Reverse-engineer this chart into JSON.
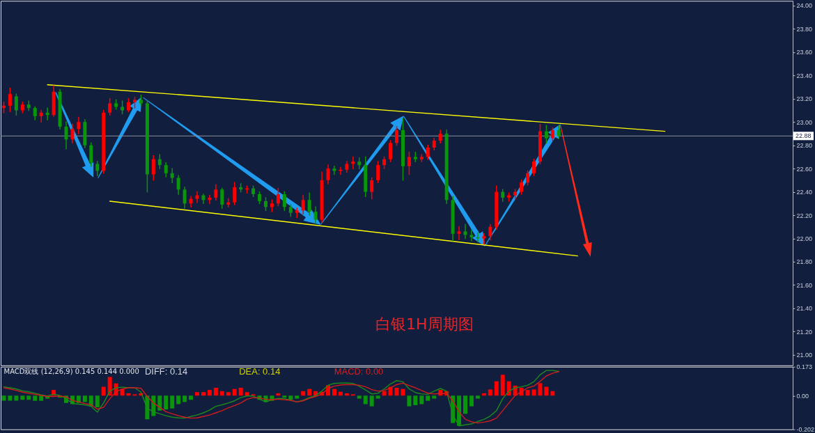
{
  "chart_data": [
    {
      "type": "candlestick",
      "annotations": [
        "白银1H周期图"
      ],
      "categories": [
        null,
        null,
        null,
        null,
        null,
        null,
        null,
        null,
        null,
        null,
        null,
        null,
        null,
        null,
        null,
        null,
        null,
        null,
        null,
        null,
        null,
        null,
        null,
        null,
        null,
        null,
        null,
        null,
        null,
        null,
        null,
        null,
        null,
        null,
        null,
        null,
        null,
        null,
        null,
        null,
        null,
        null,
        null,
        null,
        null,
        null,
        null,
        null,
        null,
        null,
        null,
        null,
        null,
        null,
        null,
        null,
        null,
        null,
        null,
        null,
        null,
        null,
        null,
        null,
        null,
        null,
        null,
        null,
        null,
        null,
        null,
        null,
        null,
        null,
        null,
        null,
        null,
        null,
        null,
        null,
        null,
        null,
        null,
        null,
        null,
        null,
        null,
        null,
        null,
        null,
        null,
        null,
        null,
        null,
        null,
        null,
        null,
        null,
        null,
        null,
        null,
        null,
        null,
        null,
        null,
        null,
        null,
        null,
        null,
        null,
        null,
        null,
        null,
        null,
        null,
        null,
        null,
        null,
        null,
        null,
        null,
        null,
        null,
        null,
        null,
        null,
        null
      ],
      "ohlc": [
        [
          23.12,
          23.17,
          23.08,
          23.14
        ],
        [
          23.14,
          23.29,
          23.09,
          23.24
        ],
        [
          23.22,
          23.24,
          23.06,
          23.1
        ],
        [
          23.1,
          23.17,
          23.08,
          23.15
        ],
        [
          23.15,
          23.18,
          23.1,
          23.12
        ],
        [
          23.12,
          23.13,
          23.02,
          23.05
        ],
        [
          23.05,
          23.1,
          23.0,
          23.08
        ],
        [
          23.08,
          23.12,
          23.02,
          23.06
        ],
        [
          23.06,
          23.31,
          23.05,
          23.26
        ],
        [
          23.26,
          23.28,
          22.94,
          22.96
        ],
        [
          22.96,
          23.0,
          22.77,
          22.85
        ],
        [
          22.85,
          22.98,
          22.82,
          22.94
        ],
        [
          22.94,
          23.04,
          22.9,
          23.0
        ],
        [
          23.0,
          23.02,
          22.78,
          22.8
        ],
        [
          22.8,
          22.82,
          22.62,
          22.65
        ],
        [
          22.64,
          22.66,
          22.54,
          22.58
        ],
        [
          22.58,
          23.1,
          22.56,
          23.08
        ],
        [
          23.08,
          23.2,
          23.06,
          23.16
        ],
        [
          23.16,
          23.19,
          23.11,
          23.13
        ],
        [
          23.13,
          23.18,
          23.07,
          23.1
        ],
        [
          23.1,
          23.2,
          23.09,
          23.17
        ],
        [
          23.17,
          23.21,
          23.12,
          23.19
        ],
        [
          23.19,
          23.23,
          23.14,
          23.16
        ],
        [
          23.16,
          23.18,
          22.4,
          22.55
        ],
        [
          22.55,
          22.71,
          22.5,
          22.68
        ],
        [
          22.68,
          22.72,
          22.6,
          22.63
        ],
        [
          22.63,
          22.65,
          22.53,
          22.56
        ],
        [
          22.56,
          22.6,
          22.48,
          22.52
        ],
        [
          22.52,
          22.54,
          22.38,
          22.42
        ],
        [
          22.42,
          22.44,
          22.26,
          22.3
        ],
        [
          22.3,
          22.36,
          22.27,
          22.34
        ],
        [
          22.34,
          22.4,
          22.31,
          22.37
        ],
        [
          22.37,
          22.38,
          22.3,
          22.33
        ],
        [
          22.33,
          22.37,
          22.3,
          22.35
        ],
        [
          22.35,
          22.46,
          22.33,
          22.42
        ],
        [
          22.42,
          22.43,
          22.26,
          22.29
        ],
        [
          22.29,
          22.34,
          22.27,
          22.31
        ],
        [
          22.31,
          22.48,
          22.29,
          22.44
        ],
        [
          22.44,
          22.47,
          22.4,
          22.42
        ],
        [
          22.42,
          22.45,
          22.39,
          22.43
        ],
        [
          22.43,
          22.45,
          22.36,
          22.38
        ],
        [
          22.38,
          22.4,
          22.3,
          22.32
        ],
        [
          22.32,
          22.35,
          22.24,
          22.27
        ],
        [
          22.27,
          22.33,
          22.23,
          22.3
        ],
        [
          22.3,
          22.43,
          22.28,
          22.38
        ],
        [
          22.38,
          22.4,
          22.24,
          22.27
        ],
        [
          22.27,
          22.29,
          22.19,
          22.22
        ],
        [
          22.22,
          22.26,
          22.18,
          22.24
        ],
        [
          22.24,
          22.37,
          22.21,
          22.33
        ],
        [
          22.33,
          22.39,
          22.2,
          22.23
        ],
        [
          22.23,
          22.27,
          22.13,
          22.16
        ],
        [
          22.16,
          22.57,
          22.14,
          22.5
        ],
        [
          22.5,
          22.63,
          22.47,
          22.6
        ],
        [
          22.6,
          22.62,
          22.55,
          22.58
        ],
        [
          22.58,
          22.61,
          22.55,
          22.59
        ],
        [
          22.59,
          22.66,
          22.57,
          22.64
        ],
        [
          22.64,
          22.7,
          22.6,
          22.66
        ],
        [
          22.66,
          22.69,
          22.6,
          22.63
        ],
        [
          22.63,
          22.7,
          22.36,
          22.4
        ],
        [
          22.4,
          22.52,
          22.34,
          22.5
        ],
        [
          22.5,
          22.66,
          22.48,
          22.63
        ],
        [
          22.63,
          22.7,
          22.6,
          22.68
        ],
        [
          22.68,
          22.84,
          22.66,
          22.82
        ],
        [
          22.82,
          22.96,
          22.8,
          22.93
        ],
        [
          22.93,
          23.03,
          22.5,
          22.62
        ],
        [
          22.62,
          22.74,
          22.55,
          22.7
        ],
        [
          22.7,
          22.74,
          22.66,
          22.68
        ],
        [
          22.68,
          22.72,
          22.66,
          22.7
        ],
        [
          22.7,
          22.8,
          22.68,
          22.78
        ],
        [
          22.78,
          22.86,
          22.76,
          22.84
        ],
        [
          22.84,
          22.93,
          22.82,
          22.9
        ],
        [
          22.9,
          22.93,
          22.3,
          22.33
        ],
        [
          22.33,
          22.36,
          21.98,
          22.04
        ],
        [
          22.04,
          22.1,
          21.99,
          22.06
        ],
        [
          22.06,
          22.12,
          22.0,
          22.03
        ],
        [
          22.03,
          22.07,
          21.98,
          22.01
        ],
        [
          22.01,
          22.05,
          21.97,
          22.0
        ],
        [
          22.0,
          22.04,
          21.95,
          22.02
        ],
        [
          22.02,
          22.12,
          21.99,
          22.1
        ],
        [
          22.1,
          22.45,
          22.08,
          22.4
        ],
        [
          22.4,
          22.42,
          22.32,
          22.35
        ],
        [
          22.35,
          22.39,
          22.32,
          22.37
        ],
        [
          22.37,
          22.42,
          22.34,
          22.4
        ],
        [
          22.4,
          22.5,
          22.38,
          22.48
        ],
        [
          22.48,
          22.58,
          22.46,
          22.56
        ],
        [
          22.56,
          22.68,
          22.54,
          22.66
        ],
        [
          22.66,
          22.98,
          22.64,
          22.92
        ],
        [
          22.92,
          22.97,
          22.82,
          22.86
        ],
        [
          22.86,
          22.95,
          22.84,
          22.93
        ],
        [
          22.93,
          22.97,
          22.86,
          22.88
        ],
        null,
        null,
        null,
        null,
        null,
        null,
        null,
        null,
        null,
        null,
        null,
        null,
        null,
        null,
        null,
        null,
        null,
        null,
        null,
        null,
        null,
        null,
        null,
        null,
        null,
        null,
        null,
        null,
        null,
        null,
        null,
        null,
        null,
        null,
        null,
        null,
        null
      ],
      "colors": [
        "#ff0000",
        "#ff0000",
        "#0a960a",
        "#ff0000",
        "#0a960a",
        "#0a960a",
        "#ff0000",
        "#0a960a",
        "#ff0000",
        "#0a960a",
        "#0a960a",
        "#ff0000",
        "#ff0000",
        "#0a960a",
        "#0a960a",
        "#0a960a",
        "#ff0000",
        "#ff0000",
        "#0a960a",
        "#0a960a",
        "#ff0000",
        "#ff0000",
        "#0a960a",
        "#0a960a",
        "#ff0000",
        "#0a960a",
        "#0a960a",
        "#0a960a",
        "#0a960a",
        "#0a960a",
        "#ff0000",
        "#ff0000",
        "#0a960a",
        "#ff0000",
        "#ff0000",
        "#0a960a",
        "#ff0000",
        "#ff0000",
        "#0a960a",
        "#ff0000",
        "#0a960a",
        "#0a960a",
        "#0a960a",
        "#ff0000",
        "#ff0000",
        "#0a960a",
        "#0a960a",
        "#ff0000",
        "#ff0000",
        "#0a960a",
        "#0a960a",
        "#ff0000",
        "#ff0000",
        "#0a960a",
        "#ff0000",
        "#ff0000",
        "#ff0000",
        "#0a960a",
        "#0a960a",
        "#ff0000",
        "#ff0000",
        "#ff0000",
        "#ff0000",
        "#ff0000",
        "#0a960a",
        "#ff0000",
        "#0a960a",
        "#ff0000",
        "#ff0000",
        "#ff0000",
        "#ff0000",
        "#0a960a",
        "#0a960a",
        "#ff0000",
        "#0a960a",
        "#0a960a",
        "#0a960a",
        "#ff0000",
        "#ff0000",
        "#ff0000",
        "#0a960a",
        "#ff0000",
        "#ff0000",
        "#ff0000",
        "#ff0000",
        "#ff0000",
        "#ff0000",
        "#0a960a",
        "#ff0000",
        "#0a960a",
        null,
        null,
        null,
        null,
        null,
        null,
        null,
        null,
        null,
        null,
        null,
        null,
        null,
        null,
        null,
        null,
        null,
        null,
        null,
        null,
        null,
        null,
        null,
        null,
        null,
        null,
        null,
        null,
        null,
        null,
        null,
        null,
        null,
        null,
        null,
        null,
        null
      ],
      "series": [
        {
          "type": "line",
          "color": "#ffff00",
          "values": [
            null,
            null,
            null,
            null,
            null,
            null,
            null,
            23.32,
            null,
            null,
            null,
            null,
            null,
            null,
            null,
            null,
            null,
            null,
            null,
            null,
            null,
            null,
            null,
            null,
            null,
            null,
            null,
            null,
            null,
            null,
            null,
            null,
            null,
            null,
            null,
            null,
            null,
            null,
            null,
            null,
            null,
            null,
            null,
            null,
            null,
            null,
            null,
            null,
            null,
            null,
            null,
            null,
            null,
            null,
            null,
            null,
            null,
            null,
            null,
            null,
            null,
            null,
            null,
            null,
            null,
            null,
            null,
            null,
            null,
            null,
            null,
            null,
            null,
            null,
            null,
            null,
            null,
            null,
            null,
            null,
            null,
            null,
            null,
            null,
            null,
            null,
            null,
            null,
            null,
            null,
            null,
            null,
            null,
            null,
            null,
            null,
            null,
            null,
            null,
            null,
            null,
            null,
            null,
            null,
            null,
            null,
            22.92,
            null,
            null,
            null,
            null,
            null,
            null,
            null,
            null,
            null,
            null,
            null,
            null,
            null,
            null,
            null,
            null,
            null,
            null,
            null,
            null
          ]
        },
        {
          "type": "line",
          "color": "#ffff00",
          "values": [
            null,
            null,
            null,
            null,
            null,
            null,
            null,
            null,
            null,
            null,
            null,
            null,
            null,
            null,
            null,
            null,
            null,
            22.32,
            null,
            null,
            null,
            null,
            null,
            null,
            null,
            null,
            null,
            null,
            null,
            null,
            null,
            null,
            null,
            null,
            null,
            null,
            null,
            null,
            null,
            null,
            null,
            null,
            null,
            null,
            null,
            null,
            null,
            null,
            null,
            null,
            null,
            null,
            null,
            null,
            null,
            null,
            null,
            null,
            null,
            null,
            null,
            null,
            null,
            null,
            null,
            null,
            null,
            null,
            null,
            null,
            null,
            null,
            null,
            null,
            null,
            null,
            null,
            null,
            null,
            null,
            null,
            null,
            null,
            null,
            null,
            null,
            null,
            null,
            null,
            null,
            null,
            null,
            21.85,
            null,
            null,
            null,
            null,
            null,
            null,
            null,
            null,
            null,
            null,
            null,
            null,
            null,
            null,
            null,
            null,
            null,
            null,
            null,
            null,
            null,
            null,
            null,
            null,
            null,
            null,
            null,
            null,
            null,
            null,
            null,
            null,
            null,
            null
          ]
        }
      ],
      "ylim": [
        20.91,
        24.04
      ],
      "yticks": [
        {
          "value": 21,
          "label": "21.00"
        },
        {
          "value": 21.2,
          "label": "21.20"
        },
        {
          "value": 21.4,
          "label": "21.40"
        },
        {
          "value": 21.6,
          "label": "21.60"
        },
        {
          "value": 21.8,
          "label": "21.80"
        },
        {
          "value": 22,
          "label": "22.00"
        },
        {
          "value": 22.2,
          "label": "22.20"
        },
        {
          "value": 22.4,
          "label": "22.40"
        },
        {
          "value": 22.6,
          "label": "22.60"
        },
        {
          "value": 22.8,
          "label": "22.80"
        },
        {
          "value": 23,
          "label": "23.00"
        },
        {
          "value": 23.2,
          "label": "23.20"
        },
        {
          "value": 23.4,
          "label": "23.40"
        },
        {
          "value": 23.6,
          "label": "23.60"
        },
        {
          "value": 23.8,
          "label": "23.80"
        },
        {
          "value": 24,
          "label": "24.00"
        }
      ],
      "ref_lines": [
        {
          "axis": "y",
          "value": 22.88,
          "label": "22.88",
          "color": "#8c909c"
        }
      ],
      "tick_labels": "y"
    },
    {
      "type": "bar",
      "annotations": [
        "MACD双线 (12,26,9) 0.145 0.144 0.000",
        "DIFF: 0.14",
        "DEA: 0.14",
        "MACD: 0.00"
      ],
      "categories": [
        null,
        null,
        null,
        null,
        null,
        null,
        null,
        null,
        null,
        null,
        null,
        null,
        null,
        null,
        null,
        null,
        null,
        null,
        null,
        null,
        null,
        null,
        null,
        null,
        null,
        null,
        null,
        null,
        null,
        null,
        null,
        null,
        null,
        null,
        null,
        null,
        null,
        null,
        null,
        null,
        null,
        null,
        null,
        null,
        null,
        null,
        null,
        null,
        null,
        null,
        null,
        null,
        null,
        null,
        null,
        null,
        null,
        null,
        null,
        null,
        null,
        null,
        null,
        null,
        null,
        null,
        null,
        null,
        null,
        null,
        null,
        null,
        null,
        null,
        null,
        null,
        null,
        null,
        null,
        null,
        null,
        null,
        null,
        null,
        null,
        null,
        null,
        null,
        null,
        null,
        null,
        null,
        null,
        null,
        null,
        null,
        null,
        null,
        null,
        null,
        null,
        null,
        null,
        null,
        null,
        null,
        null,
        null,
        null,
        null,
        null,
        null,
        null,
        null,
        null,
        null,
        null,
        null,
        null,
        null,
        null,
        null,
        null,
        null,
        null,
        null,
        null
      ],
      "series": [
        {
          "type": "bar",
          "values": [
            -0.03,
            -0.03,
            -0.03,
            -0.025,
            -0.025,
            -0.031,
            -0.031,
            -0.018,
            0.034,
            -0.012,
            -0.044,
            -0.051,
            -0.044,
            -0.038,
            -0.064,
            -0.07,
            0.053,
            0.112,
            0.073,
            0.04,
            0.014,
            0.008,
            0.014,
            -0.142,
            -0.122,
            -0.09,
            -0.083,
            -0.077,
            -0.051,
            -0.038,
            -0.025,
            0.021,
            0.021,
            0.034,
            0.047,
            0.027,
            0.021,
            0.04,
            0.047,
            0.021,
            0.008,
            -0.025,
            -0.038,
            -0.031,
            0.014,
            -0.012,
            -0.025,
            -0.018,
            0.027,
            0.04,
            0.027,
            0.023,
            0.062,
            0.04,
            0.023,
            0.014,
            0.008,
            -0.018,
            -0.051,
            -0.064,
            -0.018,
            0.027,
            0.053,
            0.047,
            0.04,
            -0.064,
            -0.057,
            -0.051,
            -0.031,
            -0.018,
            0.034,
            0.027,
            -0.164,
            -0.181,
            -0.109,
            -0.064,
            -0.018,
            0.014,
            0.037,
            0.086,
            0.125,
            0.086,
            0.06,
            0.047,
            0.034,
            0.037,
            0.075,
            0.053,
            0.027,
            0,
            null,
            null,
            null,
            null,
            null,
            null,
            null,
            null,
            null,
            null,
            null,
            null,
            null,
            null,
            null,
            null,
            null,
            null,
            null,
            null,
            null,
            null,
            null,
            null,
            null,
            null,
            null,
            null,
            null,
            null,
            null,
            null,
            null,
            null,
            null,
            null,
            null
          ],
          "colors": [
            "#0a960a",
            "#0a960a",
            "#0a960a",
            "#0a960a",
            "#0a960a",
            "#0a960a",
            "#0a960a",
            "#0a960a",
            "#ff0000",
            "#0a960a",
            "#0a960a",
            "#0a960a",
            "#0a960a",
            "#0a960a",
            "#0a960a",
            "#0a960a",
            "#ff0000",
            "#ff0000",
            "#ff0000",
            "#ff0000",
            "#ff0000",
            "#ff0000",
            "#ff0000",
            "#0a960a",
            "#0a960a",
            "#0a960a",
            "#0a960a",
            "#0a960a",
            "#0a960a",
            "#0a960a",
            "#0a960a",
            "#ff0000",
            "#ff0000",
            "#ff0000",
            "#ff0000",
            "#ff0000",
            "#ff0000",
            "#ff0000",
            "#ff0000",
            "#ff0000",
            "#ff0000",
            "#0a960a",
            "#0a960a",
            "#0a960a",
            "#ff0000",
            "#0a960a",
            "#0a960a",
            "#0a960a",
            "#ff0000",
            "#ff0000",
            "#ff0000",
            "#ff0000",
            "#ff0000",
            "#ff0000",
            "#ff0000",
            "#ff0000",
            "#ff0000",
            "#0a960a",
            "#0a960a",
            "#0a960a",
            "#0a960a",
            "#ff0000",
            "#ff0000",
            "#ff0000",
            "#ff0000",
            "#0a960a",
            "#0a960a",
            "#0a960a",
            "#0a960a",
            "#0a960a",
            "#ff0000",
            "#ff0000",
            "#0a960a",
            "#0a960a",
            "#0a960a",
            "#0a960a",
            "#0a960a",
            "#ff0000",
            "#ff0000",
            "#ff0000",
            "#ff0000",
            "#ff0000",
            "#ff0000",
            "#ff0000",
            "#ff0000",
            "#ff0000",
            "#ff0000",
            "#ff0000",
            "#ff0000",
            "#ff0000",
            null,
            null,
            null,
            null,
            null,
            null,
            null,
            null,
            null,
            null,
            null,
            null,
            null,
            null,
            null,
            null,
            null,
            null,
            null,
            null,
            null,
            null,
            null,
            null,
            null,
            null,
            null,
            null,
            null,
            null,
            null,
            null,
            null,
            null,
            null,
            null,
            null
          ]
        },
        {
          "type": "line",
          "color": "#1c8a1c",
          "values": [
            0.053,
            0.047,
            0.04,
            0.029,
            0.023,
            0.014,
            0.005,
            -0.003,
            0.008,
            0.001,
            -0.018,
            -0.047,
            -0.051,
            -0.055,
            -0.064,
            -0.099,
            -0.044,
            0.027,
            0.047,
            0.051,
            0.047,
            0.047,
            0.021,
            -0.077,
            -0.096,
            -0.109,
            -0.12,
            -0.129,
            -0.133,
            -0.135,
            -0.125,
            -0.116,
            -0.103,
            -0.087,
            -0.064,
            -0.055,
            -0.044,
            -0.031,
            -0.012,
            -0.002,
            -0.002,
            -0.021,
            -0.038,
            -0.025,
            -0.016,
            -0.018,
            -0.028,
            -0.038,
            -0.028,
            -0.012,
            0.001,
            0.027,
            0.062,
            0.073,
            0.075,
            0.075,
            0.073,
            0.056,
            0.034,
            0.01,
            0.014,
            0.04,
            0.07,
            0.09,
            0.083,
            0.04,
            0.018,
            0.01,
            0.008,
            0.027,
            0.043,
            0.027,
            -0.116,
            -0.181,
            -0.175,
            -0.17,
            -0.155,
            -0.142,
            -0.122,
            -0.09,
            -0.018,
            0.027,
            0.047,
            0.053,
            0.062,
            0.083,
            0.125,
            0.151,
            0.151,
            0.145,
            null,
            null,
            null,
            null,
            null,
            null,
            null,
            null,
            null,
            null,
            null,
            null,
            null,
            null,
            null,
            null,
            null,
            null,
            null,
            null,
            null,
            null,
            null,
            null,
            null,
            null,
            null,
            null,
            null,
            null,
            null,
            null,
            null,
            null,
            null,
            null,
            null
          ]
        },
        {
          "type": "line",
          "color": "#d01c1c",
          "values": [
            0.047,
            0.04,
            0.031,
            0.021,
            0.014,
            0.008,
            0.001,
            -0.005,
            -0.005,
            -0.002,
            -0.008,
            -0.029,
            -0.038,
            -0.047,
            -0.055,
            -0.081,
            -0.07,
            -0.018,
            0.023,
            0.04,
            0.047,
            0.047,
            0.044,
            -0.005,
            -0.044,
            -0.07,
            -0.096,
            -0.109,
            -0.12,
            -0.129,
            -0.135,
            -0.133,
            -0.125,
            -0.116,
            -0.103,
            -0.09,
            -0.073,
            -0.06,
            -0.044,
            -0.021,
            -0.012,
            -0.014,
            -0.022,
            -0.025,
            -0.021,
            -0.025,
            -0.028,
            -0.038,
            -0.031,
            -0.016,
            -0.005,
            0.01,
            0.043,
            0.057,
            0.064,
            0.066,
            0.066,
            0.062,
            0.053,
            0.036,
            0.027,
            0.031,
            0.047,
            0.066,
            0.075,
            0.06,
            0.047,
            0.031,
            0.014,
            0.01,
            0.013,
            0.014,
            -0.031,
            -0.096,
            -0.142,
            -0.157,
            -0.164,
            -0.159,
            -0.151,
            -0.135,
            -0.09,
            -0.044,
            0.001,
            0.023,
            0.047,
            0.057,
            0.086,
            0.118,
            0.134,
            0.144,
            null,
            null,
            null,
            null,
            null,
            null,
            null,
            null,
            null,
            null,
            null,
            null,
            null,
            null,
            null,
            null,
            null,
            null,
            null,
            null,
            null,
            null,
            null,
            null,
            null,
            null,
            null,
            null,
            null,
            null,
            null,
            null,
            null,
            null,
            null,
            null,
            null
          ]
        }
      ],
      "ylim": [
        -0.202,
        0.173
      ],
      "yticks": [
        0.173,
        {
          "value": 0,
          "label": "0.00"
        },
        -0.202
      ],
      "tick_labels": "y"
    }
  ]
}
